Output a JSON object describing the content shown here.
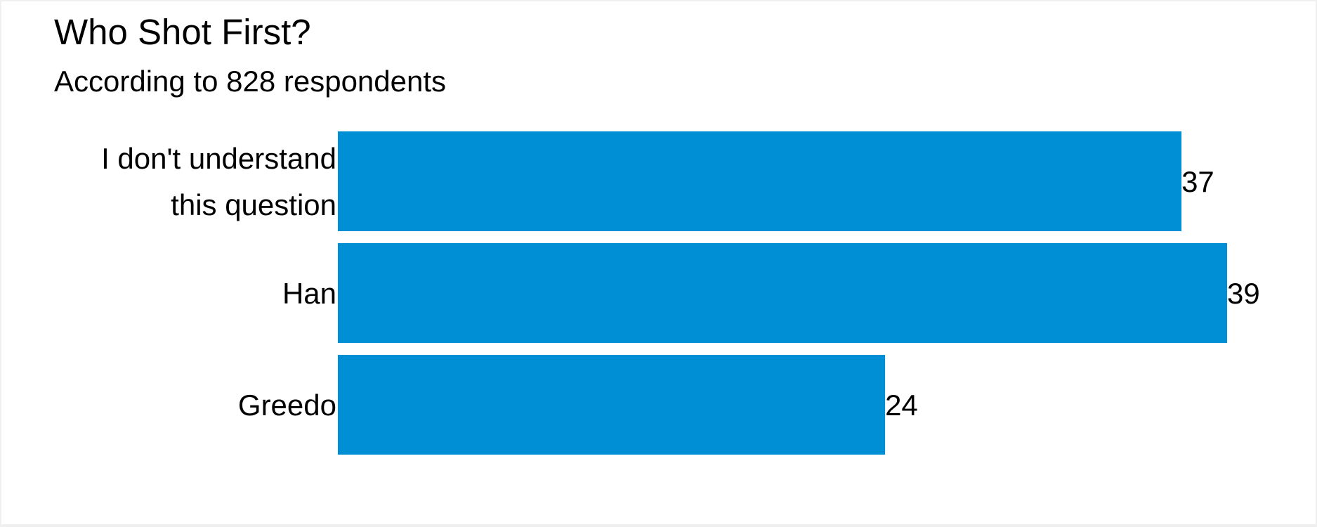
{
  "chart_data": {
    "type": "bar",
    "orientation": "horizontal",
    "title": "Who Shot First?",
    "subtitle": "According to 828 respondents",
    "categories": [
      [
        "I don't understand",
        "this question"
      ],
      [
        "Han"
      ],
      [
        "Greedo"
      ]
    ],
    "values": [
      37,
      39,
      24
    ],
    "value_labels": [
      "37",
      "39",
      "24"
    ],
    "xlabel": "",
    "ylabel": "",
    "xlim": [
      0,
      39
    ],
    "grid": false,
    "legend": "none",
    "colors": {
      "bar": "#008fd5",
      "text": "#000000",
      "background": "#ffffff",
      "border": "#f0f0f0"
    }
  }
}
